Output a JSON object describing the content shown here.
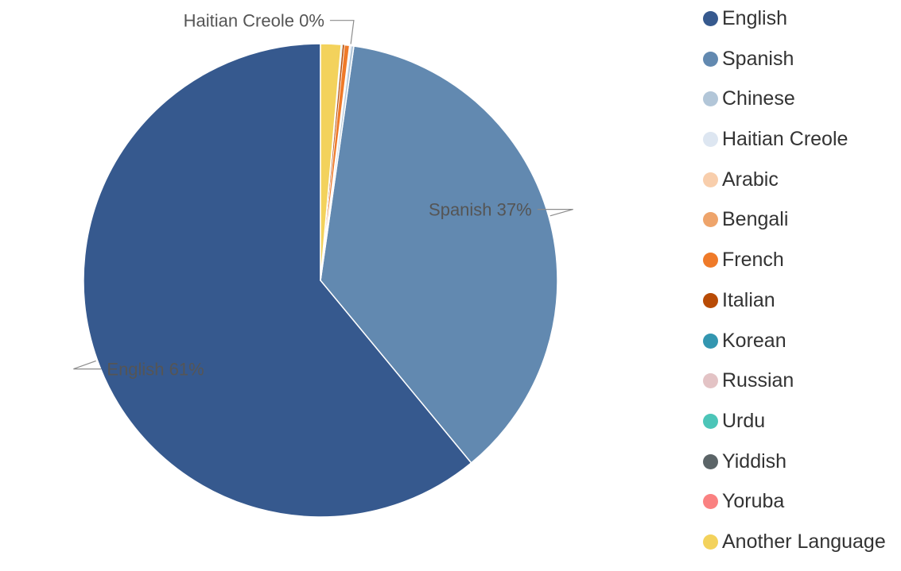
{
  "chart_data": {
    "type": "pie",
    "slices": [
      {
        "label": "English",
        "value": 61.2,
        "color": "#36598e"
      },
      {
        "label": "Spanish",
        "value": 36.9,
        "color": "#6289b0"
      },
      {
        "label": "Chinese",
        "value": 0.2,
        "color": "#b2c6d8"
      },
      {
        "label": "Haitian Creole",
        "value": 0.05,
        "color": "#dde6f1"
      },
      {
        "label": "Arabic",
        "value": 0.02,
        "color": "#f8ceac"
      },
      {
        "label": "Bengali",
        "value": 0.02,
        "color": "#eea46b"
      },
      {
        "label": "French",
        "value": 0.36,
        "color": "#ef7a29"
      },
      {
        "label": "Italian",
        "value": 0.11,
        "color": "#b84b05"
      },
      {
        "label": "Korean",
        "value": 0.02,
        "color": "#3396b0"
      },
      {
        "label": "Russian",
        "value": 0.02,
        "color": "#e3c3c5"
      },
      {
        "label": "Urdu",
        "value": 0.02,
        "color": "#4cc5b8"
      },
      {
        "label": "Yiddish",
        "value": 0.02,
        "color": "#5b6467"
      },
      {
        "label": "Yoruba",
        "value": 0.02,
        "color": "#fa8181"
      },
      {
        "label": "Another Language",
        "value": 1.4,
        "color": "#f3d25c"
      }
    ],
    "data_labels": [
      {
        "slice": "Haitian Creole",
        "text": "Haitian Creole 0%"
      },
      {
        "slice": "Spanish",
        "text": "Spanish 37%"
      },
      {
        "slice": "English",
        "text": "English 61%"
      }
    ],
    "legend_position": "right"
  }
}
